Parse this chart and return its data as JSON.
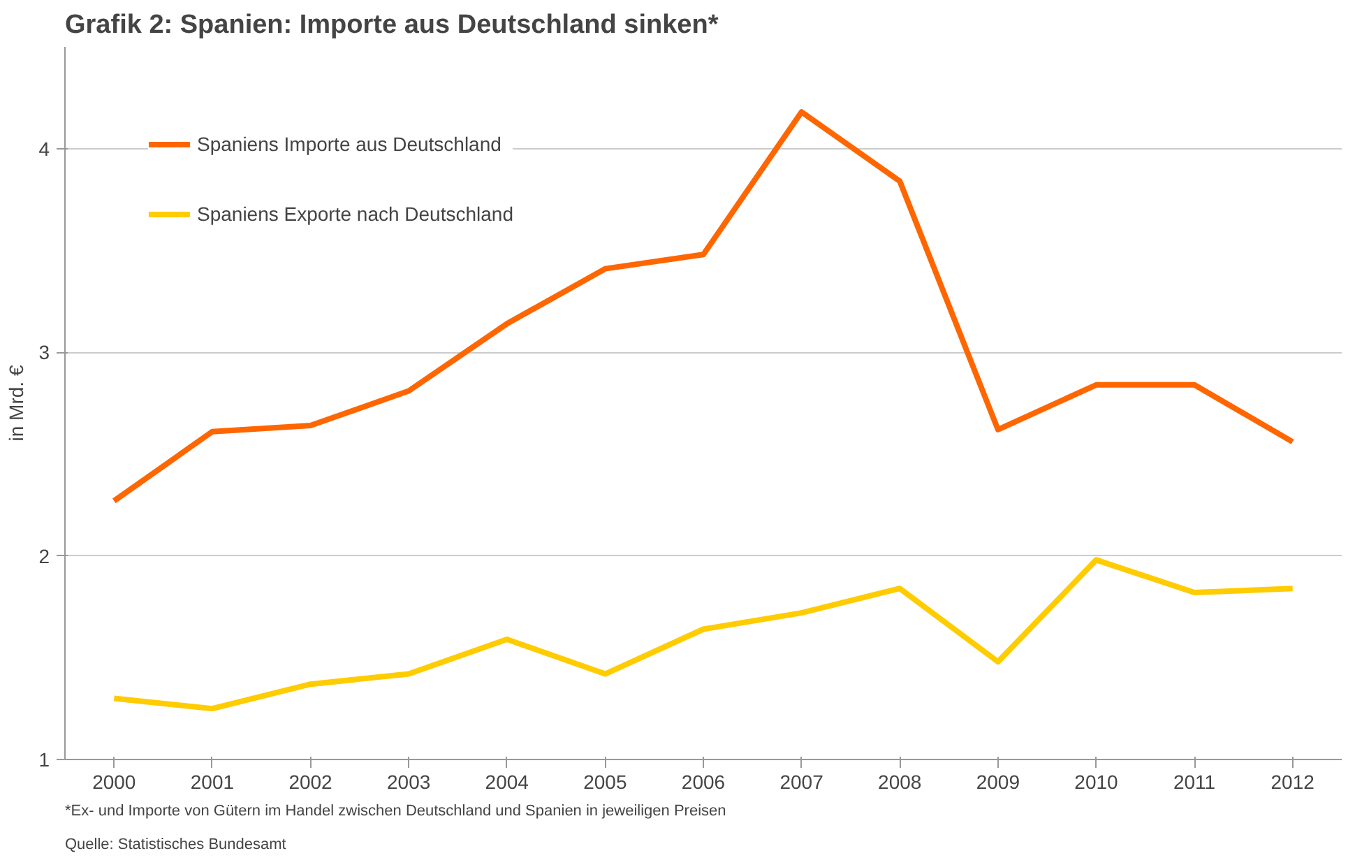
{
  "chart_data": {
    "type": "line",
    "title": "Grafik 2: Spanien: Importe aus Deutschland sinken*",
    "categories": [
      "2000",
      "2001",
      "2002",
      "2003",
      "2004",
      "2005",
      "2006",
      "2007",
      "2008",
      "2009",
      "2010",
      "2011",
      "2012"
    ],
    "series": [
      {
        "name": "Spaniens Importe aus Deutschland",
        "color": "#ff6600",
        "values": [
          2.27,
          2.61,
          2.64,
          2.81,
          3.14,
          3.41,
          3.48,
          4.18,
          3.84,
          2.62,
          2.84,
          2.84,
          2.56
        ]
      },
      {
        "name": "Spaniens Exporte nach Deutschland",
        "color": "#ffcc00",
        "values": [
          1.3,
          1.25,
          1.37,
          1.42,
          1.59,
          1.42,
          1.64,
          1.72,
          1.84,
          1.48,
          1.98,
          1.82,
          1.84
        ]
      }
    ],
    "ylabel": "in Mrd. €",
    "ylim": [
      1,
      4.5
    ],
    "yticks": [
      1,
      2,
      3,
      4
    ],
    "grid": "y",
    "legend": "top left",
    "marker": "none",
    "line_style": "solid",
    "annotations": [
      "*Ex- und Importe von Gütern im Handel zwischen Deutschland und Spanien in jeweiligen Preisen",
      "Quelle: Statistisches Bundesamt"
    ]
  }
}
